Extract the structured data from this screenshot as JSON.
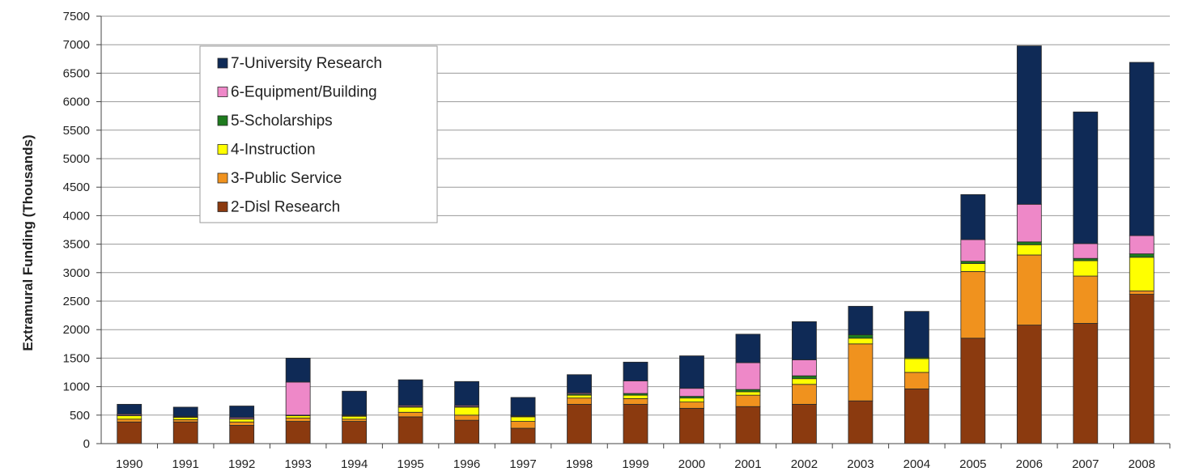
{
  "chart_data": {
    "type": "bar",
    "stacked": true,
    "title": "",
    "xlabel": "",
    "ylabel": "Extramural Funding (Thousands)",
    "ylim": [
      0,
      7500
    ],
    "yticks": [
      0,
      500,
      1000,
      1500,
      2000,
      2500,
      3000,
      3500,
      4000,
      4500,
      5000,
      5500,
      6000,
      6500,
      7000,
      7500
    ],
    "grid": true,
    "legend_position": "top-left",
    "categories": [
      "1990",
      "1991",
      "1992",
      "1993",
      "1994",
      "1995",
      "1996",
      "1997",
      "1998",
      "1999",
      "2000",
      "2001",
      "2002",
      "2003",
      "2004",
      "2005",
      "2006",
      "2007",
      "2008"
    ],
    "series": [
      {
        "name": "2-Disl Research",
        "color": "#8B3A0F",
        "values": [
          380,
          380,
          320,
          390,
          390,
          470,
          410,
          270,
          690,
          690,
          620,
          650,
          690,
          750,
          960,
          1850,
          2080,
          2110,
          2620
        ]
      },
      {
        "name": "3-Public Service",
        "color": "#F0921E",
        "values": [
          50,
          40,
          60,
          60,
          40,
          80,
          90,
          120,
          110,
          100,
          110,
          200,
          350,
          1000,
          290,
          1170,
          1230,
          830,
          60
        ]
      },
      {
        "name": "4-Instruction",
        "color": "#FFFF00",
        "values": [
          60,
          40,
          50,
          40,
          50,
          90,
          140,
          80,
          50,
          60,
          70,
          60,
          100,
          100,
          240,
          140,
          180,
          270,
          590
        ]
      },
      {
        "name": "5-Scholarships",
        "color": "#1E7B1E",
        "values": [
          10,
          10,
          10,
          10,
          10,
          10,
          10,
          10,
          20,
          30,
          30,
          40,
          50,
          60,
          20,
          40,
          50,
          40,
          60
        ]
      },
      {
        "name": "6-Equipment/Building",
        "color": "#EE88C8",
        "values": [
          20,
          10,
          20,
          580,
          10,
          20,
          20,
          10,
          20,
          220,
          140,
          470,
          280,
          0,
          0,
          380,
          660,
          260,
          320
        ]
      },
      {
        "name": "7-University Research",
        "color": "#0F2A56",
        "values": [
          170,
          160,
          200,
          420,
          420,
          450,
          420,
          320,
          320,
          330,
          570,
          500,
          670,
          500,
          810,
          790,
          2780,
          2310,
          3040
        ]
      }
    ]
  }
}
